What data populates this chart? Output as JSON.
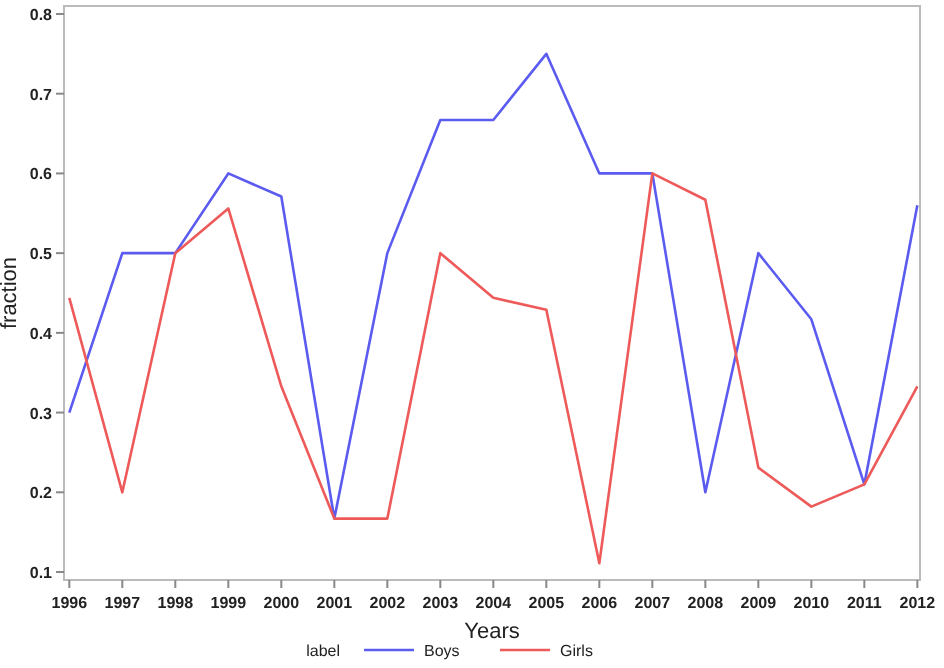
{
  "chart_data": {
    "type": "line",
    "xlabel": "Years",
    "ylabel": "fraction",
    "legend_title": "label",
    "legend": "bottom",
    "grid": false,
    "x": [
      1996,
      1997,
      1998,
      1999,
      2000,
      2001,
      2002,
      2003,
      2004,
      2005,
      2006,
      2007,
      2008,
      2009,
      2010,
      2011,
      2012
    ],
    "series": [
      {
        "name": "Boys",
        "color": "#5b5bf0",
        "values": [
          0.3,
          0.5,
          0.5,
          0.6,
          0.571,
          0.167,
          0.5,
          0.667,
          0.667,
          0.75,
          0.6,
          0.6,
          0.2,
          0.5,
          0.417,
          0.21,
          0.56
        ]
      },
      {
        "name": "Girls",
        "color": "#ee5a5a",
        "values": [
          0.444,
          0.2,
          0.5,
          0.556,
          0.333,
          0.167,
          0.167,
          0.5,
          0.444,
          0.429,
          0.111,
          0.6,
          0.567,
          0.231,
          0.182,
          0.21,
          0.333
        ]
      }
    ],
    "xlim": [
      1995.9,
      2012.05
    ],
    "ylim": [
      0.09,
      0.81
    ],
    "xticks": [
      1996,
      1997,
      1998,
      1999,
      2000,
      2001,
      2002,
      2003,
      2004,
      2005,
      2006,
      2007,
      2008,
      2009,
      2010,
      2011,
      2012
    ],
    "yticks": [
      0.1,
      0.2,
      0.3,
      0.4,
      0.5,
      0.6,
      0.7,
      0.8
    ],
    "line_style": "solid",
    "marker": "none"
  }
}
